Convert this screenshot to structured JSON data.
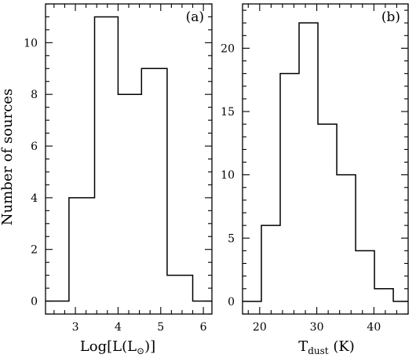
{
  "y_axis_label": "Number of sources",
  "chart_data": [
    {
      "type": "bar",
      "panel": "(a)",
      "histogram": true,
      "bin_edges": [
        2.3,
        2.85,
        3.45,
        4.0,
        4.55,
        5.15,
        5.75,
        6.2
      ],
      "values": [
        0,
        4,
        11,
        8,
        9,
        1,
        0
      ],
      "xlim": [
        2.3,
        6.2
      ],
      "ylim": [
        -0.5,
        11.5
      ],
      "xticks": [
        3,
        4,
        5,
        6
      ],
      "yticks": [
        0,
        2,
        4,
        6,
        8,
        10
      ],
      "xlabel_parts": {
        "prefix": "Log[L(L",
        "subscript": "⊙",
        "suffix": ")]"
      },
      "ylabel": "Number of sources"
    },
    {
      "type": "bar",
      "panel": "(b)",
      "histogram": true,
      "bin_edges": [
        17.0,
        20.3,
        23.6,
        26.9,
        30.2,
        33.5,
        36.8,
        40.1,
        43.4,
        46.0
      ],
      "values": [
        0,
        6,
        18,
        22,
        14,
        10,
        4,
        1,
        0
      ],
      "xlim": [
        17.0,
        46.0
      ],
      "ylim": [
        -1.0,
        23.5
      ],
      "xticks": [
        20,
        30,
        40
      ],
      "yticks": [
        0,
        5,
        10,
        15,
        20
      ],
      "xlabel_parts": {
        "prefix": "T",
        "subscript": "dust",
        "suffix": "  (K)"
      }
    }
  ]
}
